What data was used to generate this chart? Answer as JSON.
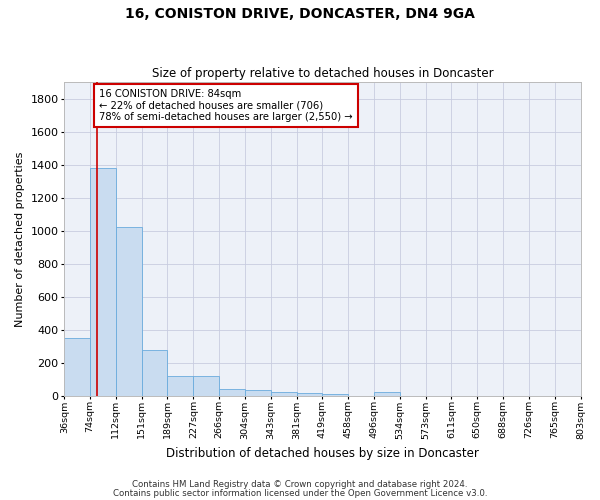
{
  "title1": "16, CONISTON DRIVE, DONCASTER, DN4 9GA",
  "title2": "Size of property relative to detached houses in Doncaster",
  "xlabel": "Distribution of detached houses by size in Doncaster",
  "ylabel": "Number of detached properties",
  "bar_color": "#c9dcf0",
  "bar_edge_color": "#6aabdd",
  "grid_color": "#c8cce0",
  "background_color": "#ffffff",
  "plot_bg_color": "#edf1f8",
  "annotation_box_color": "#cc0000",
  "annotation_text": "16 CONISTON DRIVE: 84sqm\n← 22% of detached houses are smaller (706)\n78% of semi-detached houses are larger (2,550) →",
  "bin_labels": [
    "36sqm",
    "74sqm",
    "112sqm",
    "151sqm",
    "189sqm",
    "227sqm",
    "266sqm",
    "304sqm",
    "343sqm",
    "381sqm",
    "419sqm",
    "458sqm",
    "496sqm",
    "534sqm",
    "573sqm",
    "611sqm",
    "650sqm",
    "688sqm",
    "726sqm",
    "765sqm",
    "803sqm"
  ],
  "values": [
    350,
    1380,
    1020,
    280,
    120,
    120,
    40,
    35,
    25,
    20,
    15,
    0,
    25,
    0,
    0,
    0,
    0,
    0,
    0,
    0
  ],
  "ylim": [
    0,
    1900
  ],
  "yticks": [
    0,
    200,
    400,
    600,
    800,
    1000,
    1200,
    1400,
    1600,
    1800
  ],
  "footnote_line1": "Contains HM Land Registry data © Crown copyright and database right 2024.",
  "footnote_line2": "Contains public sector information licensed under the Open Government Licence v3.0."
}
